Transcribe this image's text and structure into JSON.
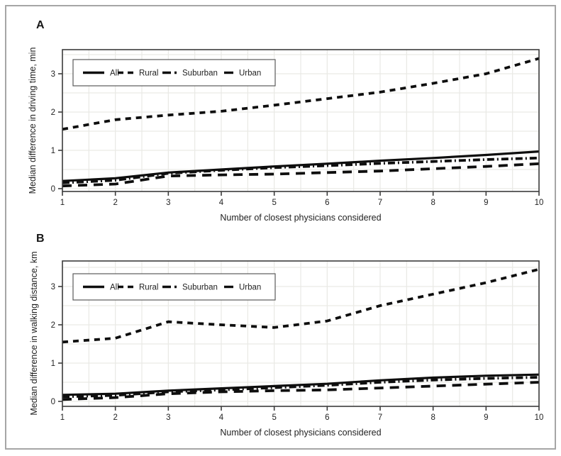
{
  "figure": {
    "background": "#ffffff",
    "frame_border_color": "#a6a6a6",
    "line_color": "#0e0e0e",
    "grid_color": "#e9e9e5",
    "axis_color": "#3c3c3c",
    "text_color": "#232323",
    "legend_border_color": "#5a5a5a"
  },
  "chart_data": [
    {
      "type": "line",
      "panel_label": "A",
      "xlabel": "Number of closest physicians considered",
      "ylabel": "Median difference in driving time, min",
      "x": [
        1,
        2,
        3,
        4,
        5,
        6,
        7,
        8,
        9,
        10
      ],
      "x_ticks": [
        "1",
        "2",
        "3",
        "4",
        "5",
        "6",
        "7",
        "8",
        "9",
        "10"
      ],
      "y_ticks": [
        "0",
        "1",
        "2",
        "3"
      ],
      "xlim": [
        1,
        10
      ],
      "ylim": [
        -0.07,
        3.63
      ],
      "grid": "light gray, 0.5-unit steps on both axes",
      "legend_position": "top-left inside plot",
      "series": [
        {
          "name": "All",
          "line_style": "solid",
          "values": [
            0.2,
            0.27,
            0.42,
            0.5,
            0.58,
            0.65,
            0.73,
            0.8,
            0.88,
            0.97
          ]
        },
        {
          "name": "Rural",
          "line_style": "dashed",
          "values": [
            1.55,
            1.8,
            1.92,
            2.02,
            2.18,
            2.35,
            2.52,
            2.75,
            3.0,
            3.4
          ]
        },
        {
          "name": "Suburban",
          "line_style": "dash-dot",
          "values": [
            0.15,
            0.22,
            0.4,
            0.48,
            0.55,
            0.6,
            0.66,
            0.71,
            0.76,
            0.8
          ]
        },
        {
          "name": "Urban",
          "line_style": "long-dash",
          "values": [
            0.07,
            0.12,
            0.33,
            0.36,
            0.38,
            0.42,
            0.46,
            0.52,
            0.58,
            0.65
          ]
        }
      ]
    },
    {
      "type": "line",
      "panel_label": "B",
      "xlabel": "Number of closest physicians considered",
      "ylabel": "Median difference in walking distance, km",
      "x": [
        1,
        2,
        3,
        4,
        5,
        6,
        7,
        8,
        9,
        10
      ],
      "x_ticks": [
        "1",
        "2",
        "3",
        "4",
        "5",
        "6",
        "7",
        "8",
        "9",
        "10"
      ],
      "y_ticks": [
        "0",
        "1",
        "2",
        "3"
      ],
      "xlim": [
        1,
        10
      ],
      "ylim": [
        -0.13,
        3.66
      ],
      "grid": "light gray, 0.5-unit steps on both axes",
      "legend_position": "top-left inside plot",
      "series": [
        {
          "name": "All",
          "line_style": "solid",
          "values": [
            0.17,
            0.2,
            0.28,
            0.34,
            0.4,
            0.46,
            0.55,
            0.62,
            0.67,
            0.7
          ]
        },
        {
          "name": "Rural",
          "line_style": "dashed",
          "values": [
            1.55,
            1.65,
            2.08,
            2.0,
            1.93,
            2.1,
            2.5,
            2.8,
            3.1,
            3.45
          ]
        },
        {
          "name": "Suburban",
          "line_style": "dash-dot",
          "values": [
            0.12,
            0.16,
            0.25,
            0.3,
            0.36,
            0.42,
            0.5,
            0.56,
            0.6,
            0.63
          ]
        },
        {
          "name": "Urban",
          "line_style": "long-dash",
          "values": [
            0.05,
            0.1,
            0.2,
            0.25,
            0.28,
            0.3,
            0.35,
            0.4,
            0.45,
            0.5
          ]
        }
      ]
    }
  ]
}
